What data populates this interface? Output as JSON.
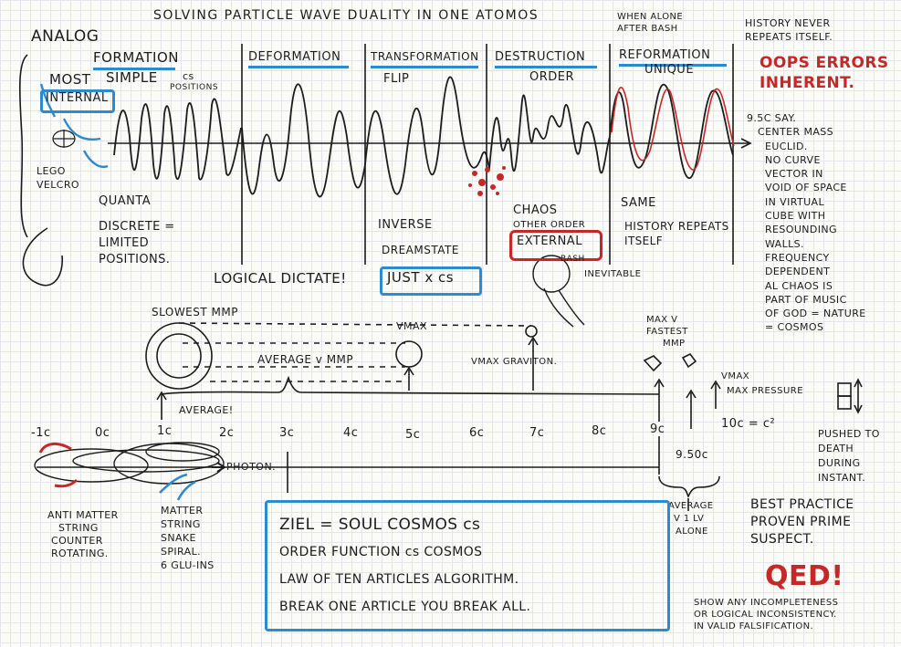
{
  "title": "SOLVING PARTICLE WAVE DUALITY IN ONE ATOMOS",
  "left": {
    "analog": "ANALOG",
    "most": "MOST",
    "simple": "SIMPLE",
    "internal": "INTERNAL",
    "lego_velcro": [
      "LEGO",
      "VELCRO"
    ],
    "quanta": "QUANTA",
    "discrete": [
      "DISCRETE =",
      "LIMITED",
      "POSITIONS."
    ]
  },
  "phases": {
    "formation": "FORMATION",
    "formation_note": "cs",
    "positions": "POSITIONS",
    "deformation": "DEFORMATION",
    "transformation": "TRANSFORMATION",
    "flip": "FLIP",
    "destruction": "DESTRUCTION",
    "order": "ORDER",
    "reformation": "REFORMATION",
    "unique": "UNIQUE"
  },
  "top_right": {
    "when_alone": [
      "WHEN ALONE",
      "AFTER BASH"
    ],
    "history": [
      "HISTORY NEVER",
      "REPEATS ITSELF."
    ],
    "oops": [
      "OOPS ERRORS",
      "INHERENT."
    ]
  },
  "right_column": [
    "9.5C SAY.",
    "CENTER MASS",
    "EUCLID.",
    "NO CURVE",
    "VECTOR IN",
    "VOID OF SPACE",
    "IN VIRTUAL",
    "CUBE WITH",
    "RESOUNDING",
    "WALLS.",
    "FREQUENCY",
    "DEPENDENT",
    "AL CHAOS IS",
    "PART OF MUSIC",
    "OF GOD = NATURE",
    "= COSMOS"
  ],
  "mid": {
    "inverse": "INVERSE",
    "dreamstate": "DREAMSTATE",
    "chaos": "CHAOS",
    "other_order": "OTHER ORDER",
    "external": "EXTERNAL",
    "bash": "BASH",
    "inevitable": "INEVITABLE",
    "same": "SAME",
    "history_repeats": [
      "HISTORY REPEATS",
      "ITSELF"
    ],
    "logical_dictate": "LOGICAL DICTATE!",
    "just_x_cs": "JUST x cs"
  },
  "speed": {
    "slowest": "SLOWEST MMP",
    "vmax": "VMAX",
    "average_v": "AVERAGE v MMP",
    "vmax_graviton": "VMAX GRAVITON.",
    "max_fastest": [
      "MAX V",
      "FASTEST",
      "MMP"
    ],
    "average_bang": "AVERAGE!",
    "vmax2": "VMAX",
    "max_pressure": "MAX PRESSURE",
    "pushed": [
      "PUSHED TO",
      "DEATH",
      "DURING",
      "INSTANT."
    ]
  },
  "axis": {
    "labels": [
      "-1c",
      "0c",
      "1c",
      "2c",
      "3c",
      "4c",
      "5c",
      "6c",
      "7c",
      "8c",
      "9c"
    ],
    "ten_c": "10c = c²",
    "nine_five": "9.50c",
    "photon": "PHOTON."
  },
  "bottom": {
    "antimatter": [
      "ANTI MATTER",
      "STRING",
      "COUNTER",
      "ROTATING."
    ],
    "matter": [
      "MATTER",
      "STRING",
      "SNAKE",
      "SPIRAL.",
      "6 GLU-INS"
    ],
    "average_vl": [
      "AVERAGE",
      "V 1 LV",
      "ALONE"
    ],
    "box_lines": [
      "ZIEL = SOUL COSMOS cs",
      "ORDER FUNCTION cs COSMOS",
      "LAW OF TEN ARTICLES ALGORITHM.",
      "BREAK ONE ARTICLE YOU BREAK ALL."
    ],
    "best_practice": [
      "BEST PRACTICE",
      "PROVEN PRIME",
      "SUSPECT."
    ],
    "qed": "QED!",
    "show_any": [
      "SHOW ANY INCOMPLETENESS",
      "OR LOGICAL INCONSISTENCY.",
      "IN VALID FALSIFICATION."
    ]
  },
  "colors": {
    "ink": "#1c1c1c",
    "blue": "#2b8ad0",
    "red": "#c62828",
    "grid": "#e3e5ea"
  }
}
